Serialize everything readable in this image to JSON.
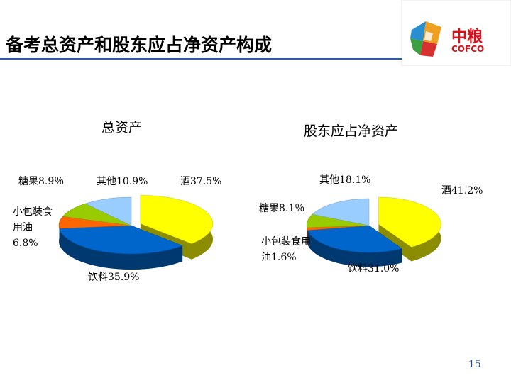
{
  "slide": {
    "title": "备考总资产和股东应占净资产构成",
    "page_number": 15,
    "logo": {
      "name": "中粮",
      "brand": "COFCO"
    }
  },
  "chart_data": [
    {
      "type": "pie",
      "title": "总资产",
      "categories": [
        "酒",
        "饮料",
        "小包装食用油",
        "糖果",
        "其他"
      ],
      "values": [
        37.5,
        35.9,
        6.8,
        8.9,
        10.9
      ],
      "value_labels": [
        "37.5%",
        "35.9%",
        "6.8%",
        "8.9％",
        "10.9%"
      ],
      "colors": [
        "#ffff00",
        "#0066cc",
        "#ff6600",
        "#99cc00",
        "#99ccff"
      ]
    },
    {
      "type": "pie",
      "title": "股东应占净资产",
      "categories": [
        "酒",
        "饮料",
        "小包装食用油",
        "糖果",
        "其他"
      ],
      "values": [
        41.2,
        31.0,
        1.6,
        8.1,
        18.1
      ],
      "value_labels": [
        "41.2%",
        "31.0%",
        "1.6%",
        "8.1％",
        "18.1%"
      ],
      "colors": [
        "#ffff00",
        "#0066cc",
        "#ff6600",
        "#99cc00",
        "#99ccff"
      ]
    }
  ]
}
